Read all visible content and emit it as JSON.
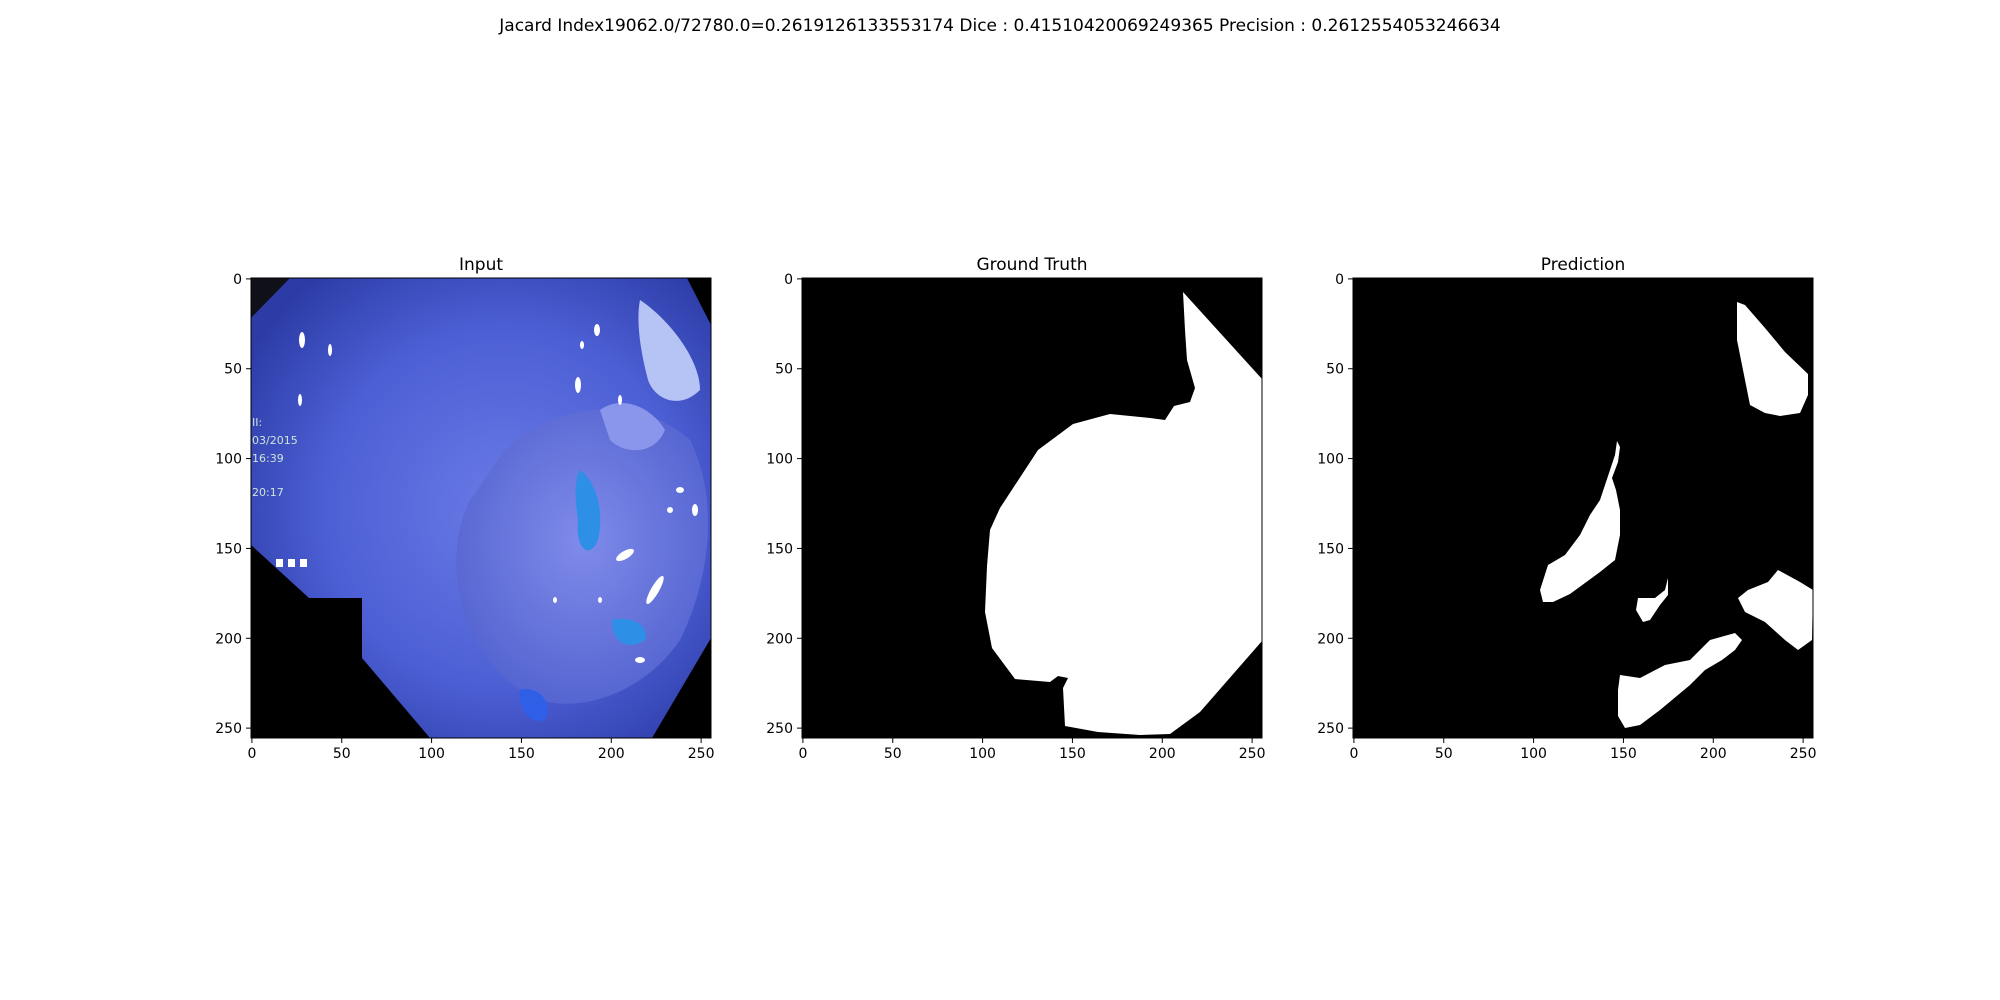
{
  "figure": {
    "suptitle": "Jacard Index19062.0/72780.0=0.2619126133553174 Dice : 0.41510420069249365 Precision : 0.2612554053246634"
  },
  "panels": [
    {
      "id": "input",
      "title": "Input",
      "xticks": [
        "0",
        "50",
        "100",
        "150",
        "200",
        "250"
      ],
      "yticks": [
        "0",
        "50",
        "100",
        "150",
        "200",
        "250"
      ],
      "overlay_text": [
        "II:",
        "03/2015",
        "16:39",
        "20:17"
      ]
    },
    {
      "id": "ground-truth",
      "title": "Ground Truth",
      "xticks": [
        "0",
        "50",
        "100",
        "150",
        "200",
        "250"
      ],
      "yticks": [
        "0",
        "50",
        "100",
        "150",
        "200",
        "250"
      ]
    },
    {
      "id": "prediction",
      "title": "Prediction",
      "xticks": [
        "0",
        "50",
        "100",
        "150",
        "200",
        "250"
      ],
      "yticks": [
        "0",
        "50",
        "100",
        "150",
        "200",
        "250"
      ]
    }
  ],
  "colors": {
    "background": "#000000",
    "mask": "#ffffff",
    "endoscopy_tissue": "#4d5fd0"
  }
}
